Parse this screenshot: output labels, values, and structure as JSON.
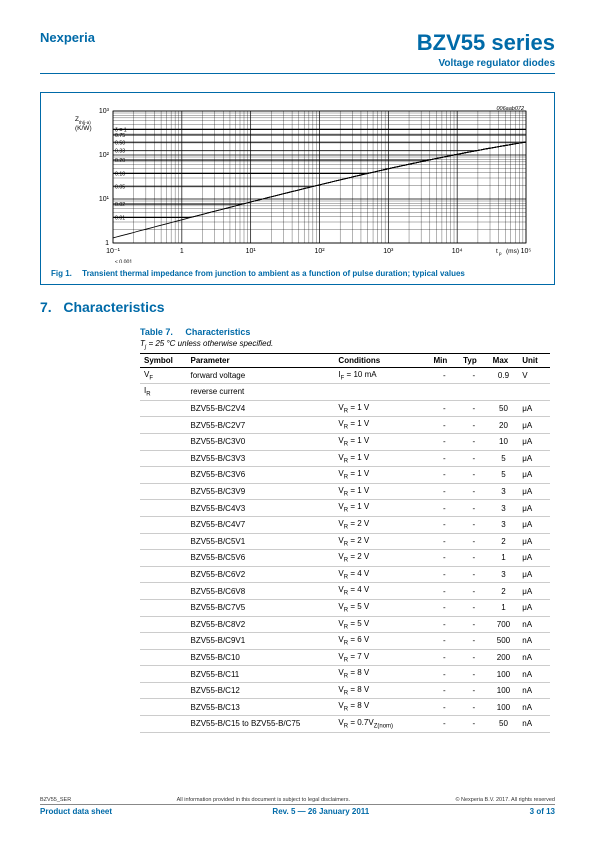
{
  "header": {
    "company": "Nexperia",
    "series": "BZV55 series",
    "subtitle": "Voltage regulator diodes"
  },
  "figure": {
    "code": "006aab072",
    "caption_num": "Fig 1.",
    "caption_text": "Transient thermal impedance from junction to ambient as a function of pulse duration; typical values",
    "ylabel": "Z_th(j-a) (K/W)",
    "xlabel": "t_p (ms)",
    "xlim_exp": [
      -1,
      5
    ],
    "ylim_exp": [
      0,
      3
    ],
    "delta_labels": [
      "δ = 1",
      "0.75",
      "0.50",
      "0.33",
      "0.20",
      "0.10",
      "0.05",
      "0.02",
      "0.01",
      "≤ 0.001"
    ],
    "delta_y_positions": [
      143,
      138,
      133,
      128,
      122,
      114,
      105,
      94,
      86,
      75
    ],
    "background": "#ffffff",
    "line_color": "#000000",
    "grid_color": "#000000",
    "border_color": "#006aa8",
    "grid_lw": 0.3
  },
  "section": {
    "num": "7.",
    "title": "Characteristics"
  },
  "table": {
    "title_num": "Table 7.",
    "title_text": "Characteristics",
    "condition": "T_j = 25 °C unless otherwise specified.",
    "headers": [
      "Symbol",
      "Parameter",
      "Conditions",
      "Min",
      "Typ",
      "Max",
      "Unit"
    ],
    "row_vf": {
      "symbol": "V_F",
      "param": "forward voltage",
      "cond": "I_F = 10 mA",
      "min": "-",
      "typ": "-",
      "max": "0.9",
      "unit": "V"
    },
    "row_ir_header": {
      "symbol": "I_R",
      "param": "reverse current"
    },
    "rows": [
      {
        "part": "BZV55-B/C2V4",
        "cond": "V_R = 1 V",
        "max": "50",
        "unit": "μA"
      },
      {
        "part": "BZV55-B/C2V7",
        "cond": "V_R = 1 V",
        "max": "20",
        "unit": "μA"
      },
      {
        "part": "BZV55-B/C3V0",
        "cond": "V_R = 1 V",
        "max": "10",
        "unit": "μA"
      },
      {
        "part": "BZV55-B/C3V3",
        "cond": "V_R = 1 V",
        "max": "5",
        "unit": "μA"
      },
      {
        "part": "BZV55-B/C3V6",
        "cond": "V_R = 1 V",
        "max": "5",
        "unit": "μA"
      },
      {
        "part": "BZV55-B/C3V9",
        "cond": "V_R = 1 V",
        "max": "3",
        "unit": "μA"
      },
      {
        "part": "BZV55-B/C4V3",
        "cond": "V_R = 1 V",
        "max": "3",
        "unit": "μA"
      },
      {
        "part": "BZV55-B/C4V7",
        "cond": "V_R = 2 V",
        "max": "3",
        "unit": "μA"
      },
      {
        "part": "BZV55-B/C5V1",
        "cond": "V_R = 2 V",
        "max": "2",
        "unit": "μA"
      },
      {
        "part": "BZV55-B/C5V6",
        "cond": "V_R = 2 V",
        "max": "1",
        "unit": "μA"
      },
      {
        "part": "BZV55-B/C6V2",
        "cond": "V_R = 4 V",
        "max": "3",
        "unit": "μA"
      },
      {
        "part": "BZV55-B/C6V8",
        "cond": "V_R = 4 V",
        "max": "2",
        "unit": "μA"
      },
      {
        "part": "BZV55-B/C7V5",
        "cond": "V_R = 5 V",
        "max": "1",
        "unit": "μA"
      },
      {
        "part": "BZV55-B/C8V2",
        "cond": "V_R = 5 V",
        "max": "700",
        "unit": "nA"
      },
      {
        "part": "BZV55-B/C9V1",
        "cond": "V_R = 6 V",
        "max": "500",
        "unit": "nA"
      },
      {
        "part": "BZV55-B/C10",
        "cond": "V_R = 7 V",
        "max": "200",
        "unit": "nA"
      },
      {
        "part": "BZV55-B/C11",
        "cond": "V_R = 8 V",
        "max": "100",
        "unit": "nA"
      },
      {
        "part": "BZV55-B/C12",
        "cond": "V_R = 8 V",
        "max": "100",
        "unit": "nA"
      },
      {
        "part": "BZV55-B/C13",
        "cond": "V_R = 8 V",
        "max": "100",
        "unit": "nA"
      },
      {
        "part": "BZV55-B/C15 to BZV55-B/C75",
        "cond": "V_R = 0.7V_Z(nom)",
        "max": "50",
        "unit": "nA"
      }
    ]
  },
  "footer": {
    "doc_id": "BZV55_SER",
    "disclaimer": "All information provided in this document is subject to legal disclaimers.",
    "copyright": "© Nexperia B.V. 2017. All rights reserved",
    "doc_type": "Product data sheet",
    "rev": "Rev. 5 — 26 January 2011",
    "page": "3 of 13"
  },
  "colors": {
    "brand": "#006aa8",
    "text": "#000000",
    "grid_light": "#cccccc"
  }
}
